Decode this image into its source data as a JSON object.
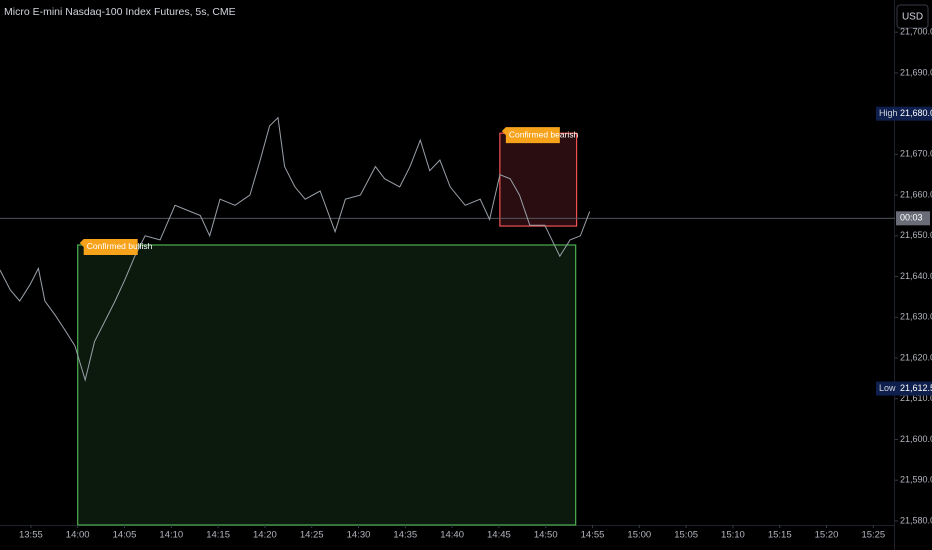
{
  "chart_data": {
    "type": "line",
    "title": "Micro E-mini Nasdaq-100 Index Futures, 5s, CME",
    "currency": "USD",
    "xlim": [
      831.7,
      927.1
    ],
    "xticks": [
      {
        "value": 835,
        "label": "13:55"
      },
      {
        "value": 840,
        "label": "14:00"
      },
      {
        "value": 845,
        "label": "14:05"
      },
      {
        "value": 850,
        "label": "14:10"
      },
      {
        "value": 855,
        "label": "14:15"
      },
      {
        "value": 860,
        "label": "14:20"
      },
      {
        "value": 865,
        "label": "14:25"
      },
      {
        "value": 870,
        "label": "14:30"
      },
      {
        "value": 875,
        "label": "14:35"
      },
      {
        "value": 880,
        "label": "14:40"
      },
      {
        "value": 885,
        "label": "14:45"
      },
      {
        "value": 890,
        "label": "14:50"
      },
      {
        "value": 895,
        "label": "14:55"
      },
      {
        "value": 900,
        "label": "15:00"
      },
      {
        "value": 905,
        "label": "15:05"
      },
      {
        "value": 910,
        "label": "15:10"
      },
      {
        "value": 915,
        "label": "15:15"
      },
      {
        "value": 920,
        "label": "15:20"
      },
      {
        "value": 925,
        "label": "15:25"
      }
    ],
    "ylim": [
      21579,
      21707.9
    ],
    "yticks": [
      {
        "value": 21580,
        "label": "21,580.00"
      },
      {
        "value": 21590,
        "label": "21,590.00"
      },
      {
        "value": 21600,
        "label": "21,600.00"
      },
      {
        "value": 21610,
        "label": "21,610.00"
      },
      {
        "value": 21620,
        "label": "21,620.00"
      },
      {
        "value": 21630,
        "label": "21,630.00"
      },
      {
        "value": 21640,
        "label": "21,640.00"
      },
      {
        "value": 21650,
        "label": "21,650.00"
      },
      {
        "value": 21660,
        "label": "21,660.00"
      },
      {
        "value": 21670,
        "label": "21,670.00"
      },
      {
        "value": 21680,
        "label": "21,680.00"
      },
      {
        "value": 21690,
        "label": "21,690.00"
      },
      {
        "value": 21700,
        "label": "21,700.00"
      }
    ],
    "series": [
      {
        "color": "#9aa0a8",
        "x": [
          831.7,
          832.8,
          833.8,
          834.9,
          835.8,
          836.5,
          837.6,
          838.6,
          839.7,
          840.8,
          841.8,
          842.9,
          844.0,
          845.0,
          846.1,
          847.2,
          848.8,
          850.4,
          852.0,
          853.1,
          854.1,
          855.2,
          856.8,
          858.4,
          859.5,
          860.5,
          861.4,
          862.1,
          863.2,
          864.3,
          865.9,
          867.5,
          868.6,
          870.2,
          871.8,
          872.8,
          874.4,
          875.5,
          876.6,
          877.6,
          878.7,
          879.8,
          881.4,
          883.0,
          884.0,
          885.1,
          886.2,
          887.2,
          888.3,
          889.9,
          891.5,
          892.6,
          893.7,
          894.7
        ],
        "values": [
          21641.6,
          21636.7,
          21634,
          21638,
          21642,
          21634,
          21630.5,
          21627,
          21623,
          21614.6,
          21624,
          21629,
          21634,
          21639,
          21645,
          21650,
          21649,
          21657.5,
          21656,
          21655,
          21650,
          21659,
          21657.5,
          21660,
          21668.6,
          21677,
          21679,
          21667,
          21662,
          21659,
          21661,
          21651,
          21659,
          21660,
          21667,
          21664,
          21662,
          21667,
          21673.5,
          21666,
          21668.6,
          21662,
          21657.5,
          21659,
          21654,
          21665,
          21664,
          21660,
          21652.6,
          21652.6,
          21645,
          21649,
          21650,
          21656
        ]
      }
    ],
    "zones": [
      {
        "label": "Confirmed bullish",
        "start": 840,
        "end": 893.2,
        "top": 21647.75,
        "bottom": 21579,
        "color": "#4caf50",
        "fill": "#0b1a0d"
      },
      {
        "label": "Confirmed bearish",
        "start": 885.1,
        "end": 893.3,
        "top": 21675.2,
        "bottom": 21652.4,
        "color": "#f05252",
        "fill": "#2a0d10"
      }
    ],
    "markers": [
      {
        "label": "High",
        "value": 21680,
        "value_label": "21,680.00",
        "color": "#0f1f4d"
      },
      {
        "label": "Low",
        "value": 21612.5,
        "value_label": "21,612.50",
        "color": "#0f1f4d"
      }
    ],
    "current": {
      "value": 21654.3,
      "label": "00:03",
      "color": "#6a6d78"
    }
  }
}
